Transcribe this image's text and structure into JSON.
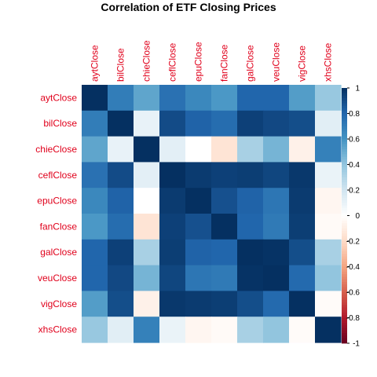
{
  "chart_data": {
    "type": "heatmap",
    "title": "Correlation of ETF Closing Prices",
    "variables": [
      "aytClose",
      "bilClose",
      "chieClose",
      "ceflClose",
      "epuClose",
      "fanClose",
      "galClose",
      "veuClose",
      "vigClose",
      "xhsClose"
    ],
    "matrix": [
      [
        1.0,
        0.7,
        0.53,
        0.75,
        0.65,
        0.58,
        0.8,
        0.8,
        0.56,
        0.38
      ],
      [
        0.7,
        1.0,
        0.1,
        0.9,
        0.81,
        0.77,
        0.94,
        0.91,
        0.89,
        0.13
      ],
      [
        0.53,
        0.1,
        1.0,
        0.12,
        0.0,
        -0.15,
        0.33,
        0.47,
        -0.08,
        0.68
      ],
      [
        0.75,
        0.9,
        0.12,
        1.0,
        0.96,
        0.94,
        0.95,
        0.92,
        0.97,
        0.09
      ],
      [
        0.65,
        0.81,
        0.0,
        0.96,
        1.0,
        0.88,
        0.81,
        0.73,
        0.96,
        -0.05
      ],
      [
        0.58,
        0.77,
        -0.15,
        0.94,
        0.88,
        1.0,
        0.8,
        0.71,
        0.95,
        -0.03
      ],
      [
        0.8,
        0.94,
        0.33,
        0.95,
        0.81,
        0.8,
        1.0,
        0.99,
        0.89,
        0.33
      ],
      [
        0.8,
        0.91,
        0.47,
        0.92,
        0.73,
        0.71,
        0.99,
        1.0,
        0.78,
        0.4
      ],
      [
        0.56,
        0.89,
        -0.08,
        0.97,
        0.96,
        0.95,
        0.89,
        0.78,
        1.0,
        -0.02
      ],
      [
        0.38,
        0.13,
        0.68,
        0.09,
        -0.05,
        -0.03,
        0.33,
        0.4,
        -0.02,
        1.0
      ]
    ],
    "color_scale": {
      "range": [
        -1,
        1
      ],
      "ticks": [
        "-1",
        "-0.8",
        "-0.6",
        "-0.4",
        "-0.2",
        "0",
        "0.2",
        "0.4",
        "0.6",
        "0.8",
        "1"
      ],
      "colors": [
        "#67001F",
        "#B2182B",
        "#D6604D",
        "#F4A582",
        "#FDDBC7",
        "#FFFFFF",
        "#D1E5F0",
        "#92C5DE",
        "#4393C3",
        "#2166AC",
        "#053061"
      ]
    },
    "legend_placement": "right",
    "grid": false
  }
}
